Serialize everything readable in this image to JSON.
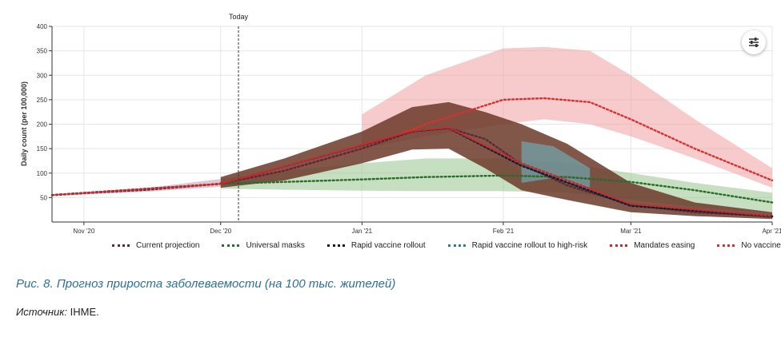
{
  "chart_data": {
    "type": "line",
    "ylabel": "Daily count (per 100,000)",
    "ylim": [
      0,
      400
    ],
    "yticks": [
      50,
      100,
      150,
      200,
      250,
      300,
      350,
      400
    ],
    "xlim": [
      "2020-10-25",
      "2021-04-01"
    ],
    "xticks": [
      {
        "date": "2020-11-01",
        "label": "Nov '20"
      },
      {
        "date": "2020-12-01",
        "label": "Dec '20"
      },
      {
        "date": "2021-01-01",
        "label": "Jan '21"
      },
      {
        "date": "2021-02-01",
        "label": "Feb '21"
      },
      {
        "date": "2021-03-01",
        "label": "Mar '21"
      },
      {
        "date": "2021-04-01",
        "label": "Apr '21"
      }
    ],
    "grid": true,
    "today": {
      "label": "Today",
      "date": "2020-12-07"
    },
    "legend_position": "bottom",
    "series": [
      {
        "name": "Current projection",
        "color": "#5a2a36",
        "band_color": "#6b3a2a",
        "values": [
          [
            "2020-10-25",
            55
          ],
          [
            "2020-11-01",
            59
          ],
          [
            "2020-11-15",
            66
          ],
          [
            "2020-12-01",
            78
          ],
          [
            "2020-12-15",
            105
          ],
          [
            "2021-01-01",
            150
          ],
          [
            "2021-01-12",
            185
          ],
          [
            "2021-01-20",
            192
          ],
          [
            "2021-01-28",
            170
          ],
          [
            "2021-02-05",
            118
          ],
          [
            "2021-02-15",
            75
          ],
          [
            "2021-03-01",
            35
          ],
          [
            "2021-03-15",
            20
          ],
          [
            "2021-04-01",
            12
          ]
        ],
        "band": [
          [
            "2020-12-01",
            70,
            92
          ],
          [
            "2020-12-15",
            85,
            130
          ],
          [
            "2021-01-01",
            120,
            185
          ],
          [
            "2021-01-12",
            148,
            235
          ],
          [
            "2021-01-20",
            150,
            245
          ],
          [
            "2021-01-28",
            110,
            225
          ],
          [
            "2021-02-05",
            65,
            200
          ],
          [
            "2021-02-15",
            45,
            160
          ],
          [
            "2021-03-01",
            20,
            80
          ],
          [
            "2021-03-15",
            12,
            40
          ],
          [
            "2021-04-01",
            6,
            20
          ]
        ]
      },
      {
        "name": "Universal masks",
        "color": "#2a6a2a",
        "band_color": "#8fbf84",
        "values": [
          [
            "2020-12-01",
            78
          ],
          [
            "2020-12-15",
            82
          ],
          [
            "2021-01-01",
            87
          ],
          [
            "2021-01-15",
            92
          ],
          [
            "2021-02-01",
            95
          ],
          [
            "2021-02-15",
            92
          ],
          [
            "2021-03-01",
            82
          ],
          [
            "2021-03-15",
            65
          ],
          [
            "2021-04-01",
            40
          ]
        ],
        "band": [
          [
            "2020-12-01",
            68,
            88
          ],
          [
            "2020-12-15",
            66,
            105
          ],
          [
            "2021-01-01",
            64,
            120
          ],
          [
            "2021-01-15",
            63,
            130
          ],
          [
            "2021-02-01",
            63,
            130
          ],
          [
            "2021-02-15",
            60,
            120
          ],
          [
            "2021-03-01",
            45,
            100
          ],
          [
            "2021-03-15",
            30,
            80
          ],
          [
            "2021-04-01",
            18,
            60
          ]
        ]
      },
      {
        "name": "Rapid vaccine rollout",
        "color": "#1a1a2e",
        "values": [
          [
            "2020-10-25",
            55
          ],
          [
            "2020-12-01",
            78
          ],
          [
            "2021-01-12",
            185
          ],
          [
            "2021-01-20",
            192
          ],
          [
            "2021-02-05",
            115
          ],
          [
            "2021-03-01",
            33
          ],
          [
            "2021-04-01",
            11
          ]
        ]
      },
      {
        "name": "Rapid vaccine rollout to high-risk",
        "color": "#2f7f86",
        "band_color": "#6fb6c2",
        "values": [
          [
            "2020-10-25",
            55
          ],
          [
            "2020-12-01",
            78
          ],
          [
            "2021-01-12",
            185
          ],
          [
            "2021-01-20",
            192
          ],
          [
            "2021-02-05",
            117
          ],
          [
            "2021-03-01",
            34
          ],
          [
            "2021-04-01",
            11
          ]
        ],
        "band": [
          [
            "2021-02-05",
            80,
            165
          ],
          [
            "2021-02-12",
            90,
            155
          ],
          [
            "2021-02-20",
            70,
            110
          ]
        ]
      },
      {
        "name": "Mandates easing",
        "color": "#cc2a2a",
        "values": [
          [
            "2020-10-25",
            55
          ],
          [
            "2020-12-01",
            78
          ],
          [
            "2021-01-12",
            186
          ],
          [
            "2021-01-20",
            193
          ],
          [
            "2021-02-05",
            120
          ],
          [
            "2021-03-01",
            37
          ],
          [
            "2021-04-01",
            12
          ]
        ]
      },
      {
        "name": "No vaccine",
        "color": "#d93030",
        "band_color": "#f0a0a0",
        "values": [
          [
            "2020-12-01",
            80
          ],
          [
            "2020-12-15",
            105
          ],
          [
            "2021-01-01",
            150
          ],
          [
            "2021-01-15",
            200
          ],
          [
            "2021-02-01",
            250
          ],
          [
            "2021-02-10",
            253
          ],
          [
            "2021-02-20",
            245
          ],
          [
            "2021-03-01",
            210
          ],
          [
            "2021-03-15",
            150
          ],
          [
            "2021-04-01",
            85
          ]
        ],
        "band": [
          [
            "2021-01-01",
            150,
            220
          ],
          [
            "2021-01-15",
            175,
            300
          ],
          [
            "2021-02-01",
            200,
            355
          ],
          [
            "2021-02-10",
            210,
            358
          ],
          [
            "2021-02-20",
            200,
            350
          ],
          [
            "2021-03-01",
            175,
            300
          ],
          [
            "2021-03-15",
            130,
            210
          ],
          [
            "2021-04-01",
            70,
            110
          ]
        ]
      }
    ]
  },
  "caption": "Рис. 8. Прогноз прироста заболеваемости (на 100 тыс. жителей)",
  "source": {
    "label": "Источник:",
    "text": " IHME."
  },
  "icons": {
    "filter": "sliders-icon"
  }
}
